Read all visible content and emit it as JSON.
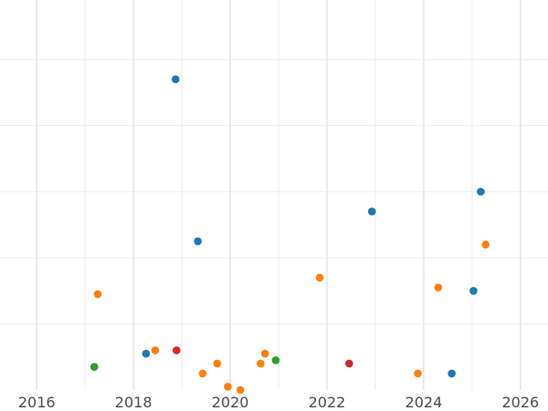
{
  "chart_data": {
    "type": "scatter",
    "title": "",
    "xlabel": "",
    "ylabel": "",
    "xlim": [
      2015.24,
      2026.57
    ],
    "ylim": [
      0,
      118
    ],
    "x_ticks": [
      2016,
      2018,
      2020,
      2022,
      2024,
      2026
    ],
    "x_tick_labels": [
      "2016",
      "2018",
      "2020",
      "2022",
      "2024",
      "2026"
    ],
    "y_gridlines": [
      20,
      40,
      60,
      80,
      100
    ],
    "y_tick_labels_visible": false,
    "grid": true,
    "legend": "none",
    "series": [
      {
        "color": "#1f77b4",
        "points": [
          {
            "x": 2018.87,
            "y": 94
          },
          {
            "x": 2019.33,
            "y": 45
          },
          {
            "x": 2018.26,
            "y": 11
          },
          {
            "x": 2022.93,
            "y": 54
          },
          {
            "x": 2025.18,
            "y": 60
          },
          {
            "x": 2025.03,
            "y": 30
          },
          {
            "x": 2024.58,
            "y": 5
          }
        ]
      },
      {
        "color": "#ff7f0e",
        "points": [
          {
            "x": 2017.26,
            "y": 29
          },
          {
            "x": 2018.45,
            "y": 12
          },
          {
            "x": 2019.43,
            "y": 5
          },
          {
            "x": 2019.73,
            "y": 8
          },
          {
            "x": 2019.95,
            "y": 1
          },
          {
            "x": 2020.21,
            "y": 0
          },
          {
            "x": 2020.63,
            "y": 8
          },
          {
            "x": 2020.72,
            "y": 11
          },
          {
            "x": 2021.85,
            "y": 34
          },
          {
            "x": 2023.88,
            "y": 5
          },
          {
            "x": 2024.3,
            "y": 31
          },
          {
            "x": 2025.28,
            "y": 44
          }
        ]
      },
      {
        "color": "#2ca02c",
        "points": [
          {
            "x": 2017.19,
            "y": 7
          },
          {
            "x": 2020.94,
            "y": 9
          }
        ]
      },
      {
        "color": "#d62728",
        "points": [
          {
            "x": 2018.89,
            "y": 12
          },
          {
            "x": 2022.46,
            "y": 8
          }
        ]
      }
    ]
  }
}
